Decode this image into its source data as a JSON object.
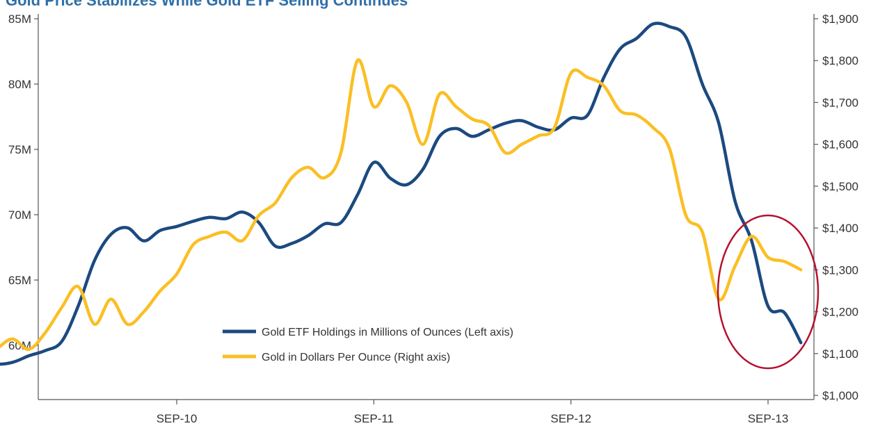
{
  "chart_data": {
    "type": "line",
    "title": "Gold Price Stabilizes While Gold ETF Selling Continues",
    "x_ticks": [
      "SEP-10",
      "SEP-11",
      "SEP-12",
      "SEP-13"
    ],
    "x_range": [
      "2009-09",
      "2013-11"
    ],
    "left_axis": {
      "ticks": [
        "60M",
        "65M",
        "70M",
        "75M",
        "80M",
        "85M"
      ],
      "tick_values": [
        60,
        65,
        70,
        75,
        80,
        85
      ],
      "ylim": [
        56,
        85
      ]
    },
    "right_axis": {
      "ticks": [
        "$1,000",
        "$1,100",
        "$1,200",
        "$1,300",
        "$1,400",
        "$1,500",
        "$1,600",
        "$1,700",
        "$1,800",
        "$1,900"
      ],
      "tick_values": [
        1000,
        1100,
        1200,
        1300,
        1400,
        1500,
        1600,
        1700,
        1800,
        1900
      ],
      "ylim": [
        1000,
        1900
      ]
    },
    "legend": {
      "placement": "lower-center"
    },
    "series": [
      {
        "name": "Gold ETF Holdings in Millions of Ounces (Left axis)",
        "axis": "left",
        "color": "#1b4a7f",
        "x": [
          "2009-09",
          "2009-10",
          "2009-11",
          "2009-12",
          "2010-01",
          "2010-02",
          "2010-03",
          "2010-04",
          "2010-05",
          "2010-06",
          "2010-07",
          "2010-08",
          "2010-09",
          "2010-10",
          "2010-11",
          "2010-12",
          "2011-01",
          "2011-02",
          "2011-03",
          "2011-04",
          "2011-05",
          "2011-06",
          "2011-07",
          "2011-08",
          "2011-09",
          "2011-10",
          "2011-11",
          "2011-12",
          "2012-01",
          "2012-02",
          "2012-03",
          "2012-04",
          "2012-05",
          "2012-06",
          "2012-07",
          "2012-08",
          "2012-09",
          "2012-10",
          "2012-11",
          "2012-12",
          "2013-01",
          "2013-02",
          "2013-03",
          "2013-04",
          "2013-05",
          "2013-06",
          "2013-07",
          "2013-08",
          "2013-09",
          "2013-10",
          "2013-11"
        ],
        "y": [
          59.2,
          58.6,
          58.7,
          59.2,
          59.6,
          60.3,
          63.0,
          66.5,
          68.5,
          69.0,
          68.0,
          68.8,
          69.1,
          69.5,
          69.8,
          69.7,
          70.2,
          69.4,
          67.6,
          67.8,
          68.4,
          69.3,
          69.4,
          71.5,
          74.0,
          72.8,
          72.3,
          73.5,
          76.0,
          76.6,
          76.0,
          76.5,
          77.0,
          77.2,
          76.7,
          76.5,
          77.4,
          77.6,
          80.5,
          82.7,
          83.5,
          84.6,
          84.4,
          83.6,
          80.0,
          77.0,
          71.0,
          68.0,
          63.0,
          62.5,
          60.2
        ]
      },
      {
        "name": "Gold in Dollars Per Ounce (Right axis)",
        "axis": "right",
        "color": "#fbbf24",
        "x": [
          "2009-09",
          "2009-10",
          "2009-11",
          "2009-12",
          "2010-01",
          "2010-02",
          "2010-03",
          "2010-04",
          "2010-05",
          "2010-06",
          "2010-07",
          "2010-08",
          "2010-09",
          "2010-10",
          "2010-11",
          "2010-12",
          "2011-01",
          "2011-02",
          "2011-03",
          "2011-04",
          "2011-05",
          "2011-06",
          "2011-07",
          "2011-08",
          "2011-09",
          "2011-10",
          "2011-11",
          "2011-12",
          "2012-01",
          "2012-02",
          "2012-03",
          "2012-04",
          "2012-05",
          "2012-06",
          "2012-07",
          "2012-08",
          "2012-09",
          "2012-10",
          "2012-11",
          "2012-12",
          "2013-01",
          "2013-02",
          "2013-03",
          "2013-04",
          "2013-05",
          "2013-06",
          "2013-07",
          "2013-08",
          "2013-09",
          "2013-10",
          "2013-11"
        ],
        "y": [
          1085,
          1110,
          1135,
          1110,
          1150,
          1210,
          1260,
          1170,
          1230,
          1170,
          1200,
          1250,
          1290,
          1360,
          1380,
          1390,
          1370,
          1430,
          1460,
          1520,
          1545,
          1520,
          1580,
          1800,
          1690,
          1740,
          1700,
          1600,
          1720,
          1690,
          1660,
          1645,
          1580,
          1600,
          1620,
          1640,
          1770,
          1760,
          1740,
          1680,
          1670,
          1640,
          1590,
          1430,
          1390,
          1230,
          1310,
          1380,
          1330,
          1320,
          1300
        ]
      }
    ],
    "annotation": {
      "type": "ellipse",
      "color": "#b5122e",
      "around": "SEP-13"
    }
  }
}
